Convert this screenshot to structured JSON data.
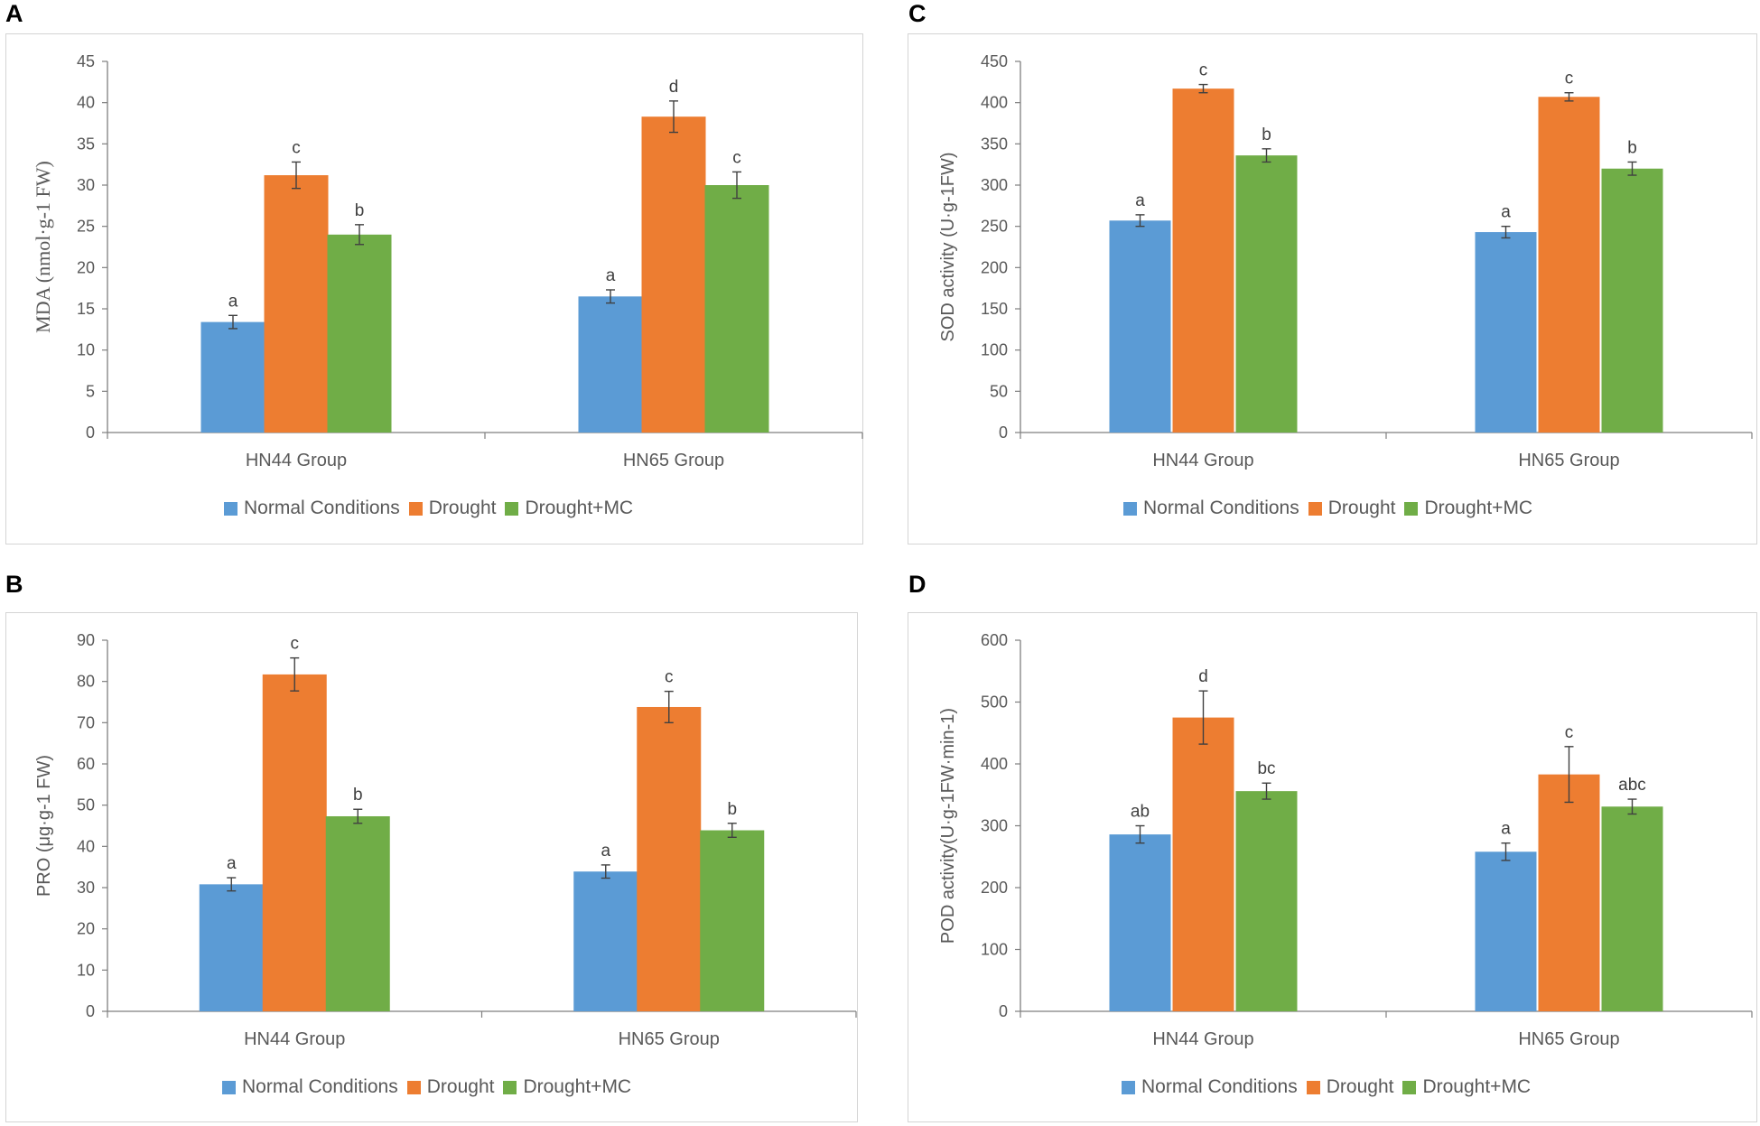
{
  "colors": {
    "normal": "#5b9bd5",
    "drought": "#ed7d31",
    "drought_mc": "#70ad47",
    "axis": "#7f7f7f",
    "error": "#404040"
  },
  "legend": [
    "Normal Conditions",
    "Drought",
    "Drought+MC"
  ],
  "chart_data": [
    {
      "panel": "A",
      "type": "bar",
      "ylabel": "MDA (nmol·g-1 FW)",
      "ylim": [
        0,
        45
      ],
      "yticks": [
        0,
        5,
        10,
        15,
        20,
        25,
        30,
        35,
        40,
        45
      ],
      "categories": [
        "HN44 Group",
        "HN65 Group"
      ],
      "series": [
        {
          "name": "Normal Conditions",
          "values": [
            13.4,
            16.5
          ],
          "errors": [
            0.8,
            0.8
          ],
          "letters": [
            "a",
            "a"
          ]
        },
        {
          "name": "Drought",
          "values": [
            31.2,
            38.3
          ],
          "errors": [
            1.6,
            1.9
          ],
          "letters": [
            "c",
            "d"
          ]
        },
        {
          "name": "Drought+MC",
          "values": [
            24.0,
            30.0
          ],
          "errors": [
            1.2,
            1.6
          ],
          "letters": [
            "b",
            "c"
          ]
        }
      ]
    },
    {
      "panel": "B",
      "type": "bar",
      "ylabel": "PRO (μg·g-1 FW)",
      "ylim": [
        0,
        90
      ],
      "yticks": [
        0,
        10,
        20,
        30,
        40,
        50,
        60,
        70,
        80,
        90
      ],
      "categories": [
        "HN44 Group",
        "HN65 Group"
      ],
      "series": [
        {
          "name": "Normal Conditions",
          "values": [
            30.8,
            33.9
          ],
          "errors": [
            1.6,
            1.6
          ],
          "letters": [
            "a",
            "a"
          ]
        },
        {
          "name": "Drought",
          "values": [
            81.7,
            73.8
          ],
          "errors": [
            4.0,
            3.8
          ],
          "letters": [
            "c",
            "c"
          ]
        },
        {
          "name": "Drought+MC",
          "values": [
            47.3,
            43.9
          ],
          "errors": [
            1.7,
            1.7
          ],
          "letters": [
            "b",
            "b"
          ]
        }
      ]
    },
    {
      "panel": "C",
      "type": "bar",
      "ylabel": "SOD activity (U·g-1FW)",
      "ylim": [
        0,
        450
      ],
      "yticks": [
        0,
        50,
        100,
        150,
        200,
        250,
        300,
        350,
        400,
        450
      ],
      "categories": [
        "HN44 Group",
        "HN65 Group"
      ],
      "series": [
        {
          "name": "Normal Conditions",
          "values": [
            257,
            243
          ],
          "errors": [
            7,
            7
          ],
          "letters": [
            "a",
            "a"
          ]
        },
        {
          "name": "Drought",
          "values": [
            417,
            407
          ],
          "errors": [
            5,
            5
          ],
          "letters": [
            "c",
            "c"
          ]
        },
        {
          "name": "Drought+MC",
          "values": [
            336,
            320
          ],
          "errors": [
            8,
            8
          ],
          "letters": [
            "b",
            "b"
          ]
        }
      ]
    },
    {
      "panel": "D",
      "type": "bar",
      "ylabel": "POD activity(U·g-1FW·min-1)",
      "ylim": [
        0,
        600
      ],
      "yticks": [
        0,
        100,
        200,
        300,
        400,
        500,
        600
      ],
      "categories": [
        "HN44 Group",
        "HN65 Group"
      ],
      "series": [
        {
          "name": "Normal Conditions",
          "values": [
            286,
            258
          ],
          "errors": [
            14,
            14
          ],
          "letters": [
            "ab",
            "a"
          ]
        },
        {
          "name": "Drought",
          "values": [
            475,
            383
          ],
          "errors": [
            43,
            45
          ],
          "letters": [
            "d",
            "c"
          ]
        },
        {
          "name": "Drought+MC",
          "values": [
            356,
            331
          ],
          "errors": [
            13,
            12
          ],
          "letters": [
            "bc",
            "abc"
          ]
        }
      ]
    }
  ]
}
